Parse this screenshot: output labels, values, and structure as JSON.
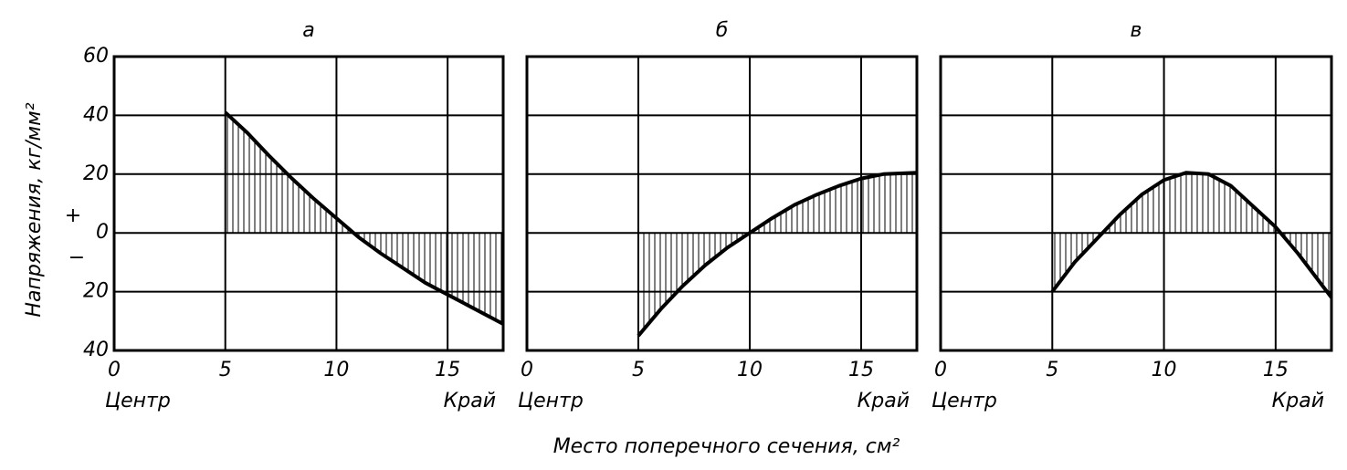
{
  "chart_data": [
    {
      "type": "line",
      "title": "а",
      "ylabel": "Напряжения, кг/мм²",
      "annotations": [
        "+",
        "−"
      ],
      "x": [
        5,
        6,
        7,
        8,
        9,
        10,
        11,
        12,
        13,
        14,
        15,
        16,
        17.5
      ],
      "values": [
        41,
        34,
        26,
        18.5,
        11.5,
        5,
        -1.5,
        -7,
        -12,
        -17,
        -21,
        -25,
        -31
      ],
      "color": "#000000",
      "xlim": [
        0,
        17.5
      ],
      "xticks": [
        0,
        5,
        10,
        15
      ],
      "ylim": [
        -40,
        60
      ],
      "yticks": [
        60,
        40,
        20,
        0,
        {
          "value": -20,
          "label": "20"
        },
        {
          "value": -40,
          "label": "40"
        }
      ],
      "ytick_labels": true,
      "edge_labels": [
        "Центр",
        "Край"
      ],
      "grid": true
    },
    {
      "type": "line",
      "title": "б",
      "xlabel": "Место поперечного сечения, см²",
      "x": [
        5,
        6,
        7,
        8,
        9,
        10,
        11,
        12,
        13,
        14,
        15,
        16,
        17.5
      ],
      "values": [
        -35,
        -26,
        -18,
        -11,
        -5,
        0,
        5,
        9.5,
        13,
        16,
        18.5,
        20,
        20.5
      ],
      "color": "#000000",
      "xlim": [
        0,
        17.5
      ],
      "xticks": [
        0,
        5,
        10,
        15
      ],
      "ylim": [
        -40,
        60
      ],
      "yticks": [
        -20,
        0,
        20,
        40
      ],
      "ytick_labels": false,
      "edge_labels": [
        "Центр",
        "Край"
      ],
      "grid": true
    },
    {
      "type": "line",
      "title": "в",
      "x": [
        5,
        6,
        7,
        8,
        9,
        10,
        11,
        12,
        13,
        14,
        15,
        16,
        17.5
      ],
      "values": [
        -20,
        -10,
        -2,
        6,
        13,
        18,
        20.5,
        20,
        16,
        9,
        2,
        -7,
        -22
      ],
      "color": "#000000",
      "xlim": [
        0,
        17.5
      ],
      "xticks": [
        0,
        5,
        10,
        15
      ],
      "ylim": [
        -40,
        60
      ],
      "yticks": [
        -20,
        0,
        20,
        40
      ],
      "ytick_labels": false,
      "edge_labels": [
        "Центр",
        "Край"
      ],
      "grid": true
    }
  ]
}
